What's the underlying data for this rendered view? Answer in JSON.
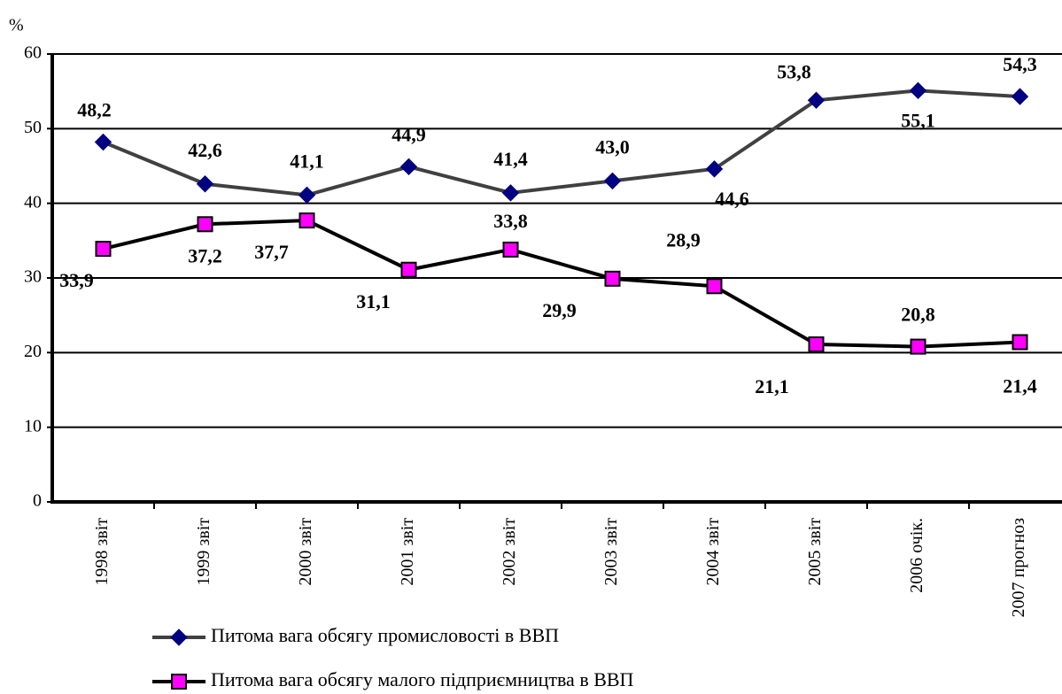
{
  "chart_data": {
    "type": "line",
    "y_axis_label": "%",
    "categories": [
      "1998 звіт",
      "1999 звіт",
      "2000 звіт",
      "2001 звіт",
      "2002 звіт",
      "2003 звіт",
      "2004 звіт",
      "2005 звіт",
      "2006 очік.",
      "2007 прогноз"
    ],
    "series": [
      {
        "name": "Питома вага обсягу промисловості в ВВП",
        "color": "#404040",
        "marker_color": "#000080",
        "marker": "diamond",
        "values": [
          48.2,
          42.6,
          41.1,
          44.9,
          41.4,
          43.0,
          44.6,
          53.8,
          55.1,
          54.3
        ],
        "value_labels": [
          "48,2",
          "42,6",
          "41,1",
          "44,9",
          "41,4",
          "43,0",
          "44,6",
          "53,8",
          "55,1",
          "54,3"
        ]
      },
      {
        "name": "Питома вага обсягу малого підприємництва в ВВП",
        "color": "#000000",
        "marker_color": "#ff00ff",
        "marker": "square",
        "values": [
          33.9,
          37.2,
          37.7,
          31.1,
          33.8,
          29.9,
          28.9,
          21.1,
          20.8,
          21.4
        ],
        "value_labels": [
          "33,9",
          "37,2",
          "37,7",
          "31,1",
          "33,8",
          "29,9",
          "28,9",
          "21,1",
          "20,8",
          "21,4"
        ]
      }
    ],
    "ylim": [
      0,
      60
    ],
    "yticks": [
      0,
      10,
      20,
      30,
      40,
      50,
      60
    ],
    "grid": true,
    "legend": "bottom"
  }
}
